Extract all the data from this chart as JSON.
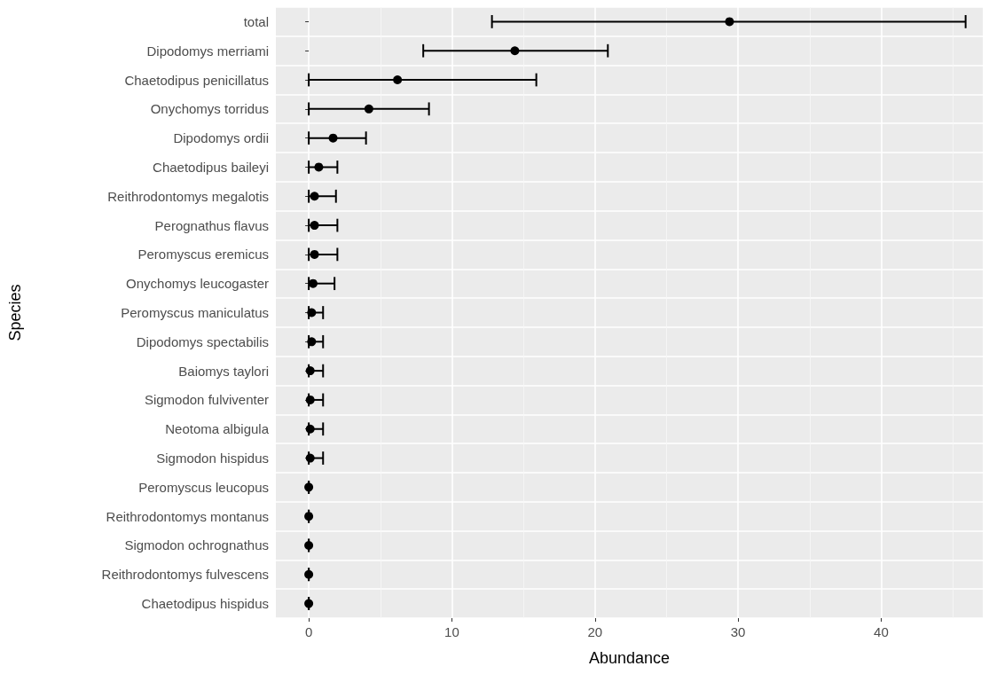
{
  "chart_data": {
    "type": "scatter",
    "orientation": "horizontal",
    "xlabel": "Abundance",
    "ylabel": "Species",
    "categories": [
      "total",
      "Dipodomys merriami",
      "Chaetodipus penicillatus",
      "Onychomys torridus",
      "Dipodomys ordii",
      "Chaetodipus baileyi",
      "Reithrodontomys megalotis",
      "Perognathus flavus",
      "Peromyscus eremicus",
      "Onychomys leucogaster",
      "Peromyscus maniculatus",
      "Dipodomys spectabilis",
      "Baiomys taylori",
      "Sigmodon fulviventer",
      "Neotoma albigula",
      "Sigmodon hispidus",
      "Peromyscus leucopus",
      "Reithrodontomys montanus",
      "Sigmodon ochrognathus",
      "Reithrodontomys fulvescens",
      "Chaetodipus hispidus"
    ],
    "values": [
      29.4,
      14.4,
      6.2,
      4.2,
      1.7,
      0.7,
      0.4,
      0.4,
      0.4,
      0.3,
      0.2,
      0.2,
      0.1,
      0.1,
      0.1,
      0.1,
      0,
      0,
      0,
      0,
      0
    ],
    "errors": [
      [
        12.8,
        45.9
      ],
      [
        8.0,
        20.9
      ],
      [
        0,
        15.9
      ],
      [
        0,
        8.4
      ],
      [
        0,
        4.0
      ],
      [
        0,
        2.0
      ],
      [
        0,
        1.9
      ],
      [
        0,
        2.0
      ],
      [
        0,
        2.0
      ],
      [
        0,
        1.8
      ],
      [
        0,
        1.0
      ],
      [
        0,
        1.0
      ],
      [
        0,
        1.0
      ],
      [
        0,
        1.0
      ],
      [
        0,
        1.0
      ],
      [
        0,
        1.0
      ],
      [
        0,
        0
      ],
      [
        0,
        0
      ],
      [
        0,
        0
      ],
      [
        0,
        0
      ],
      [
        0,
        0
      ]
    ],
    "color": "#000000",
    "marker": "circle",
    "xlim": [
      -2.3,
      47.1
    ],
    "xticks": [
      0,
      10,
      20,
      30,
      40
    ],
    "grid": true,
    "legend": false
  }
}
